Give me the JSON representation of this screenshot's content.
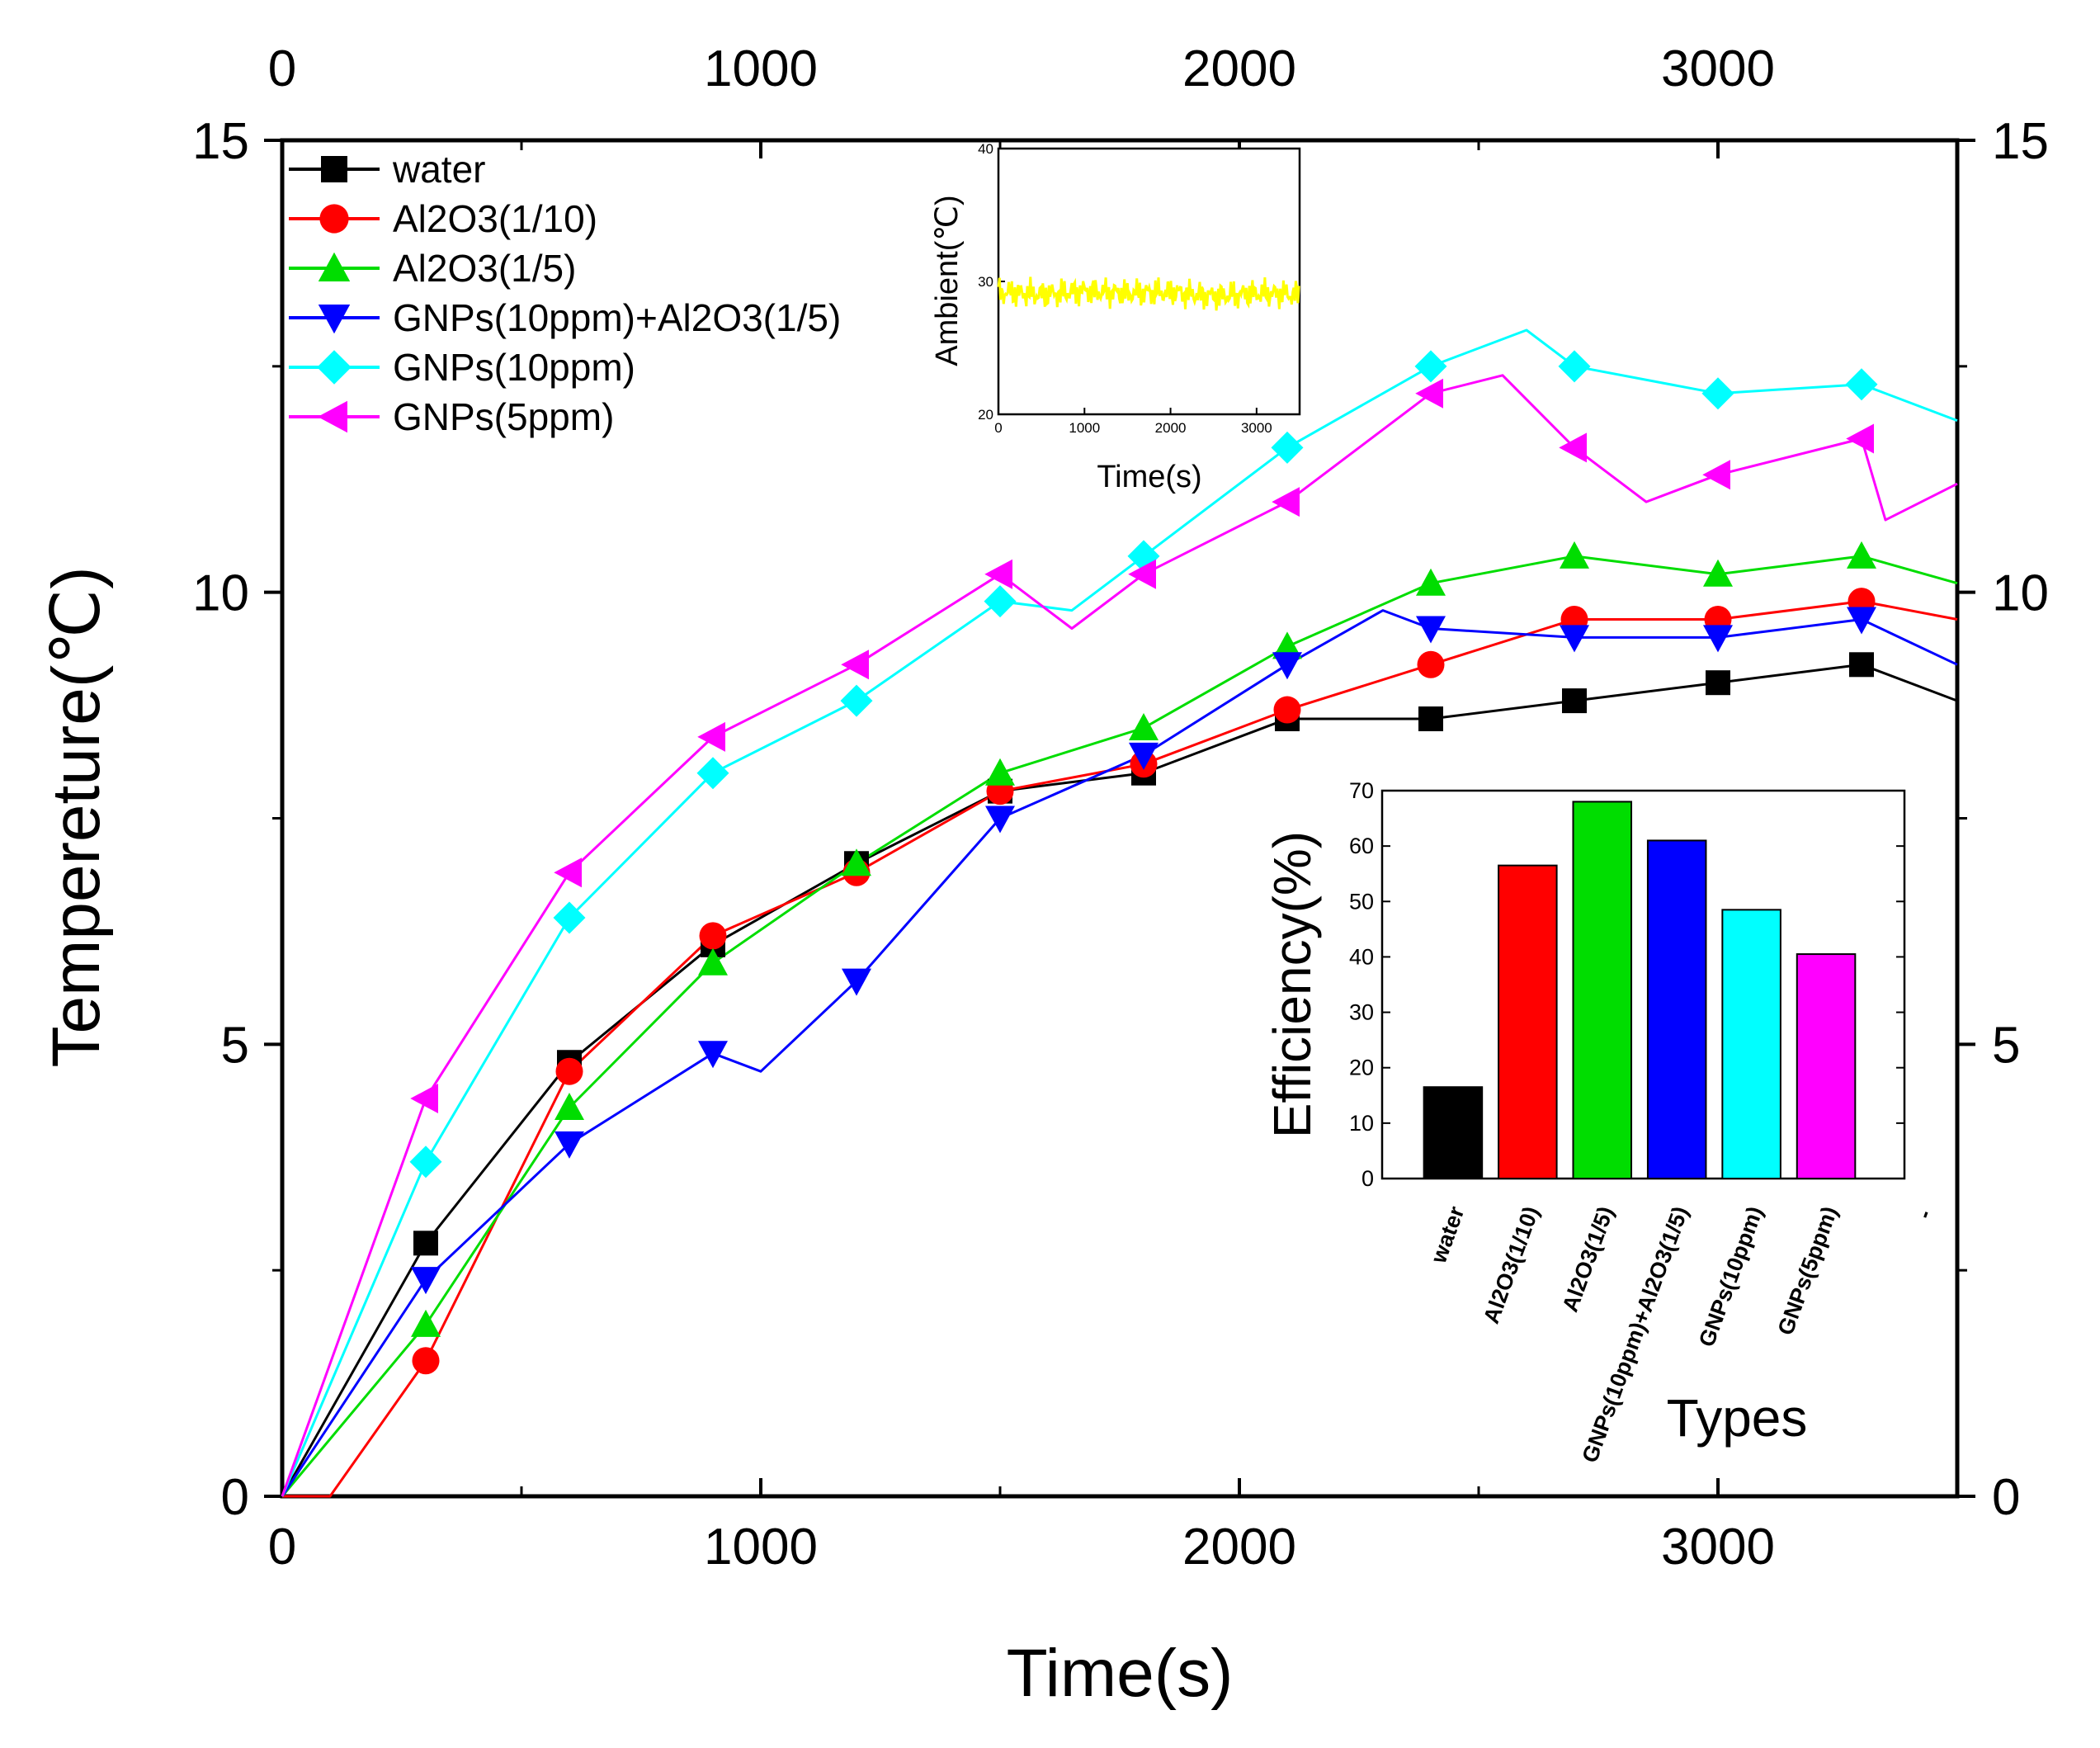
{
  "chart_data": [
    {
      "type": "line",
      "xlabel": "Time(s)",
      "ylabel": "Tempereture(℃)",
      "xlim": [
        0,
        3500
      ],
      "ylim": [
        0,
        15
      ],
      "xticks": [
        0,
        1000,
        2000,
        3000
      ],
      "yticks": [
        0,
        5,
        10,
        15
      ],
      "grid": false,
      "legend_position": "top-left",
      "series": [
        {
          "name": "water",
          "color": "#000000",
          "marker": "square",
          "x": [
            0,
            300,
            600,
            900,
            1200,
            1500,
            1800,
            2100,
            2400,
            2700,
            3000,
            3300,
            3500
          ],
          "y": [
            0,
            2.8,
            4.8,
            6.1,
            7.0,
            7.8,
            8.0,
            8.6,
            8.6,
            8.8,
            9.0,
            9.2,
            8.8
          ]
        },
        {
          "name": "Al2O3(1/10)",
          "color": "#ff0000",
          "marker": "circle",
          "x": [
            0,
            100,
            300,
            600,
            900,
            1200,
            1500,
            1800,
            2100,
            2400,
            2700,
            3000,
            3300,
            3500
          ],
          "y": [
            0,
            0,
            1.5,
            4.7,
            6.2,
            6.9,
            7.8,
            8.1,
            8.7,
            9.2,
            9.7,
            9.7,
            9.9,
            9.7
          ]
        },
        {
          "name": "Al2O3(1/5)",
          "color": "#00dd00",
          "marker": "triangle-up",
          "x": [
            0,
            300,
            600,
            900,
            1200,
            1500,
            1800,
            2100,
            2400,
            2700,
            3000,
            3300,
            3500
          ],
          "y": [
            0,
            1.9,
            4.3,
            5.9,
            7.0,
            8.0,
            8.5,
            9.4,
            10.1,
            10.4,
            10.2,
            10.4,
            10.1
          ]
        },
        {
          "name": "GNPs(10ppm)+Al2O3(1/5)",
          "color": "#0000ff",
          "marker": "triangle-down",
          "x": [
            0,
            300,
            600,
            900,
            1000,
            1200,
            1500,
            1800,
            2100,
            2300,
            2400,
            2700,
            3000,
            3300,
            3500
          ],
          "y": [
            0,
            2.4,
            3.9,
            4.9,
            4.7,
            5.7,
            7.5,
            8.2,
            9.2,
            9.8,
            9.6,
            9.5,
            9.5,
            9.7,
            9.2
          ]
        },
        {
          "name": "GNPs(10ppm)",
          "color": "#00ffff",
          "marker": "diamond",
          "x": [
            0,
            300,
            600,
            900,
            1200,
            1500,
            1650,
            1800,
            2100,
            2400,
            2600,
            2700,
            3000,
            3300,
            3500
          ],
          "y": [
            0,
            3.7,
            6.4,
            8.0,
            8.8,
            9.9,
            9.8,
            10.4,
            11.6,
            12.5,
            12.9,
            12.5,
            12.2,
            12.3,
            11.9
          ]
        },
        {
          "name": "GNPs(5ppm)",
          "color": "#ff00ff",
          "marker": "triangle-left",
          "x": [
            0,
            300,
            600,
            900,
            1200,
            1500,
            1650,
            1800,
            2100,
            2400,
            2550,
            2700,
            2850,
            3000,
            3300,
            3350,
            3500
          ],
          "y": [
            0,
            4.4,
            6.9,
            8.4,
            9.2,
            10.2,
            9.6,
            10.2,
            11.0,
            12.2,
            12.4,
            11.6,
            11.0,
            11.3,
            11.7,
            10.8,
            11.2
          ]
        }
      ]
    },
    {
      "type": "line",
      "name": "ambient-inset",
      "xlabel": "Time(s)",
      "ylabel": "Ambient(℃)",
      "xlim": [
        0,
        3500
      ],
      "ylim": [
        20,
        40
      ],
      "xticks": [
        0,
        1000,
        2000,
        3000
      ],
      "yticks": [
        20,
        30,
        40
      ],
      "series": [
        {
          "name": "Ambient",
          "color": "#ffff00",
          "x": [
            0,
            500,
            1000,
            1500,
            2000,
            2500,
            3000,
            3500
          ],
          "y": [
            29.2,
            29.0,
            29.3,
            29.1,
            29.2,
            28.9,
            29.1,
            29.0
          ]
        }
      ]
    },
    {
      "type": "bar",
      "name": "efficiency-inset",
      "xlabel": "Types",
      "ylabel": "Efficiency(%)",
      "ylim": [
        0,
        70
      ],
      "yticks": [
        0,
        10,
        20,
        30,
        40,
        50,
        60,
        70
      ],
      "categories": [
        "water",
        "Al2O3(1/10)",
        "Al2O3(1/5)",
        "GNPs(10ppm)+Al2O3(1/5)",
        "GNPs(10ppm)",
        "GNPs(5ppm)"
      ],
      "values": [
        16.5,
        56.5,
        68,
        61,
        48.5,
        40.5
      ],
      "colors": [
        "#000000",
        "#ff0000",
        "#00dd00",
        "#0000ff",
        "#00ffff",
        "#ff00ff"
      ],
      "extra_tick_mark": "-"
    }
  ]
}
